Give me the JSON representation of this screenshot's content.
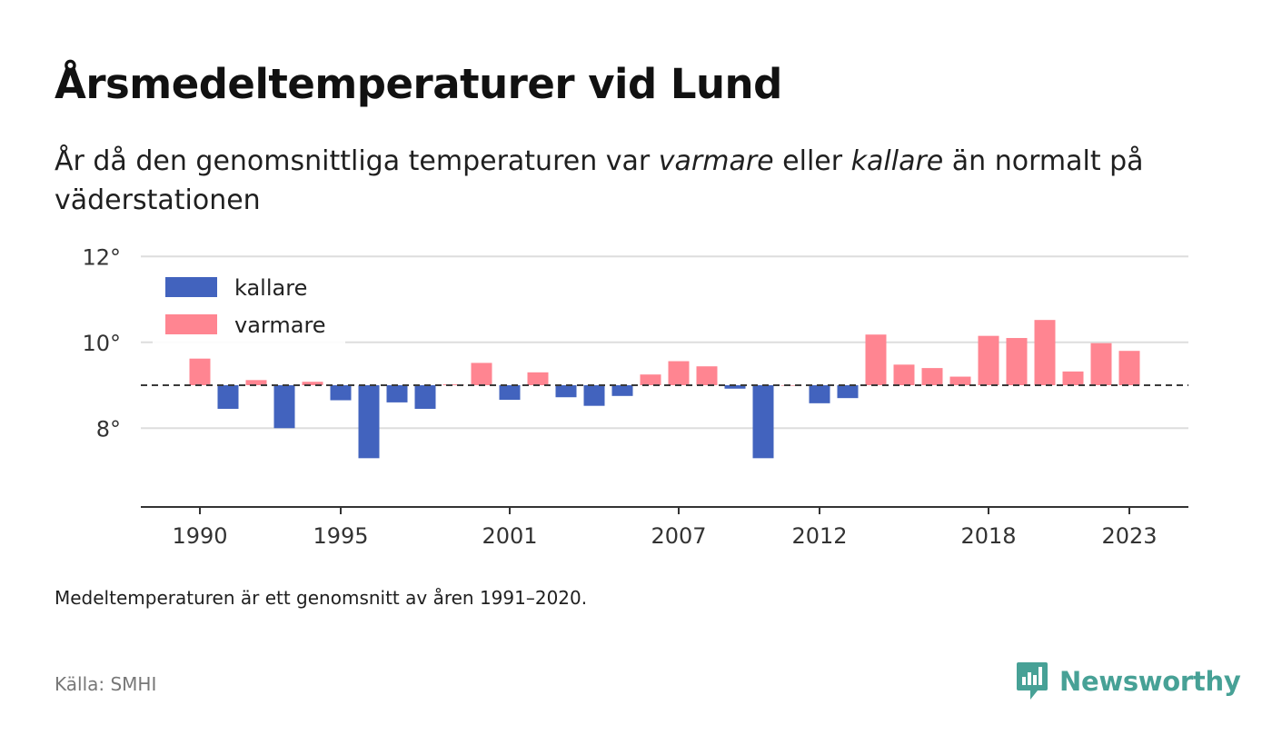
{
  "title": "Årsmedeltemperaturer vid Lund",
  "subtitle": {
    "part1": "År då den genomsnittliga temperaturen var ",
    "warm_word": "varmare",
    "part2": " eller ",
    "cold_word": "kallare",
    "part3": " än normalt på väderstationen"
  },
  "note": "Medeltemperaturen är ett genomsnitt av åren 1991–2020.",
  "source": "Källa: SMHI",
  "brand": {
    "name": "Newsworthy",
    "icon": "newsworthy-logo-icon"
  },
  "colors": {
    "cold": "#4263be",
    "warm": "#ff8591",
    "brand": "#47a196"
  },
  "chart_data": {
    "type": "bar",
    "baseline": 9.0,
    "baseline_style": "dashed",
    "grid": true,
    "ylim": [
      6.2,
      12.2
    ],
    "yticks": [
      8,
      10,
      12
    ],
    "ytick_labels": [
      "8°",
      "10°",
      "12°"
    ],
    "xticks": [
      1990,
      1995,
      2001,
      2007,
      2012,
      2018,
      2023
    ],
    "legend": {
      "placement": "top-left",
      "items": [
        {
          "key": "cold",
          "label": "kallare"
        },
        {
          "key": "warm",
          "label": "varmare"
        }
      ]
    },
    "series": [
      {
        "name": "kallare",
        "key": "cold"
      },
      {
        "name": "varmare",
        "key": "warm"
      }
    ],
    "x": [
      1990,
      1991,
      1992,
      1993,
      1994,
      1995,
      1996,
      1997,
      1998,
      1999,
      2000,
      2001,
      2002,
      2003,
      2004,
      2005,
      2006,
      2007,
      2008,
      2009,
      2010,
      2011,
      2012,
      2013,
      2014,
      2015,
      2016,
      2017,
      2018,
      2019,
      2020,
      2021,
      2022,
      2023
    ],
    "values": [
      9.62,
      8.45,
      9.12,
      8.0,
      9.08,
      8.65,
      7.3,
      8.6,
      8.45,
      9.02,
      9.52,
      8.66,
      9.3,
      8.72,
      8.52,
      8.75,
      9.25,
      9.56,
      9.44,
      8.92,
      7.3,
      9.0,
      8.58,
      8.7,
      10.18,
      9.48,
      9.4,
      9.2,
      10.15,
      10.1,
      10.52,
      9.32,
      9.98,
      9.8
    ]
  }
}
